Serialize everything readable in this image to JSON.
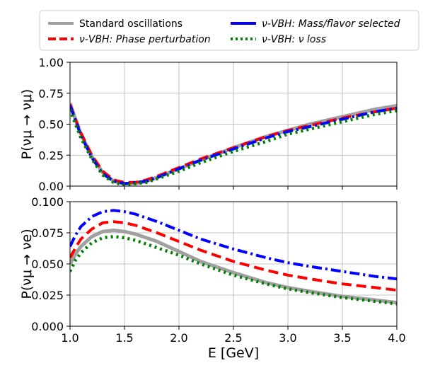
{
  "chart_data": {
    "type": "line",
    "xlabel": "E [GeV]",
    "xlim": [
      1.0,
      4.0
    ],
    "x_ticks": [
      "1.0",
      "1.5",
      "2.0",
      "2.5",
      "3.0",
      "3.5",
      "4.0"
    ],
    "grid": true,
    "legend": {
      "placement": "top-outside",
      "entries": [
        {
          "label": "Standard oscillations",
          "color": "#a0a0a0",
          "style": "solid"
        },
        {
          "label": "ν-VBH: Phase perturbation",
          "color": "#ff0000",
          "style": "dashed"
        },
        {
          "label": "ν-VBH: Mass/flavor selected",
          "color": "#0000ff",
          "style": "dashdot"
        },
        {
          "label": "ν-VBH: ν loss",
          "color": "#008000",
          "style": "dotted"
        }
      ]
    },
    "panels": [
      {
        "name": "disappearance",
        "ylabel": "P(νμ → νμ)",
        "ylim": [
          0.0,
          1.0
        ],
        "y_ticks": [
          "0.00",
          "0.25",
          "0.50",
          "0.75",
          "1.00"
        ],
        "x": [
          1.0,
          1.05,
          1.1,
          1.2,
          1.3,
          1.4,
          1.5,
          1.6,
          1.7,
          1.8,
          2.0,
          2.2,
          2.5,
          2.8,
          3.0,
          3.2,
          3.5,
          3.8,
          4.0
        ],
        "series": [
          {
            "name": "Standard oscillations",
            "values": [
              0.67,
              0.54,
              0.42,
              0.24,
              0.11,
              0.04,
              0.02,
              0.02,
              0.04,
              0.07,
              0.14,
              0.21,
              0.31,
              0.4,
              0.45,
              0.5,
              0.56,
              0.62,
              0.65
            ]
          },
          {
            "name": "ν-VBH: Phase perturbation",
            "values": [
              0.66,
              0.54,
              0.43,
              0.25,
              0.12,
              0.05,
              0.03,
              0.03,
              0.05,
              0.08,
              0.15,
              0.22,
              0.31,
              0.4,
              0.45,
              0.49,
              0.55,
              0.6,
              0.63
            ]
          },
          {
            "name": "ν-VBH: Mass/flavor selected",
            "values": [
              0.65,
              0.53,
              0.41,
              0.23,
              0.1,
              0.04,
              0.02,
              0.03,
              0.04,
              0.07,
              0.14,
              0.21,
              0.3,
              0.39,
              0.44,
              0.48,
              0.54,
              0.6,
              0.63
            ]
          },
          {
            "name": "ν-VBH: ν loss",
            "values": [
              0.62,
              0.5,
              0.39,
              0.22,
              0.09,
              0.03,
              0.01,
              0.02,
              0.03,
              0.06,
              0.12,
              0.19,
              0.28,
              0.36,
              0.42,
              0.46,
              0.52,
              0.58,
              0.61
            ]
          }
        ]
      },
      {
        "name": "appearance",
        "ylabel": "P(νμ → νe)",
        "ylim": [
          0.0,
          0.1
        ],
        "y_ticks": [
          "0.000",
          "0.025",
          "0.050",
          "0.075",
          "0.100"
        ],
        "x": [
          1.0,
          1.05,
          1.1,
          1.2,
          1.3,
          1.4,
          1.5,
          1.6,
          1.8,
          2.0,
          2.2,
          2.5,
          2.8,
          3.0,
          3.2,
          3.5,
          3.8,
          4.0
        ],
        "series": [
          {
            "name": "Standard oscillations",
            "values": [
              0.05,
              0.058,
              0.064,
              0.072,
              0.076,
              0.077,
              0.076,
              0.074,
              0.068,
              0.06,
              0.052,
              0.043,
              0.035,
              0.031,
              0.028,
              0.024,
              0.021,
              0.019
            ]
          },
          {
            "name": "ν-VBH: Phase perturbation",
            "values": [
              0.055,
              0.063,
              0.07,
              0.078,
              0.083,
              0.084,
              0.083,
              0.081,
              0.075,
              0.068,
              0.061,
              0.052,
              0.045,
              0.041,
              0.038,
              0.034,
              0.031,
              0.029
            ]
          },
          {
            "name": "ν-VBH: Mass/flavor selected",
            "values": [
              0.064,
              0.073,
              0.08,
              0.088,
              0.092,
              0.093,
              0.092,
              0.09,
              0.084,
              0.077,
              0.07,
              0.062,
              0.055,
              0.051,
              0.048,
              0.044,
              0.04,
              0.038
            ]
          },
          {
            "name": "ν-VBH: ν loss",
            "values": [
              0.044,
              0.053,
              0.059,
              0.067,
              0.071,
              0.072,
              0.071,
              0.069,
              0.063,
              0.057,
              0.05,
              0.041,
              0.034,
              0.03,
              0.027,
              0.023,
              0.02,
              0.018
            ]
          }
        ]
      }
    ]
  }
}
